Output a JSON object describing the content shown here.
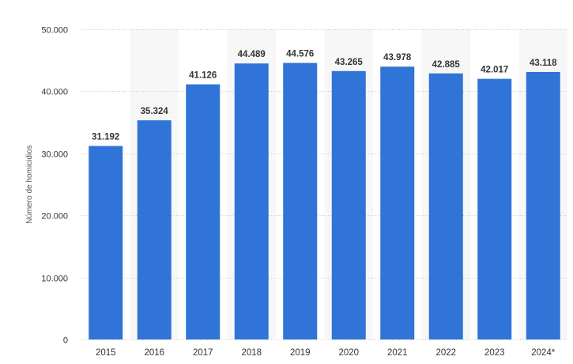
{
  "chart_data": {
    "type": "bar",
    "categories": [
      "2015",
      "2016",
      "2017",
      "2018",
      "2019",
      "2020",
      "2021",
      "2022",
      "2023",
      "2024*"
    ],
    "values": [
      31192,
      35324,
      41126,
      44489,
      44576,
      43265,
      43978,
      42885,
      42017,
      43118
    ],
    "value_labels": [
      "31.192",
      "35.324",
      "41.126",
      "44.489",
      "44.576",
      "43.265",
      "43.978",
      "42.885",
      "42.017",
      "43.118"
    ],
    "ylabel": "Número de homicidios",
    "xlabel": "",
    "ylim": [
      0,
      50000
    ],
    "yticks": [
      0,
      10000,
      20000,
      30000,
      40000,
      50000
    ],
    "ytick_labels": [
      "0",
      "10.000",
      "20.000",
      "30.000",
      "40.000",
      "50.000"
    ],
    "grid": "horizontal-dotted",
    "bar_color": "#2f74d6",
    "band_color": "#f7f7f7"
  }
}
